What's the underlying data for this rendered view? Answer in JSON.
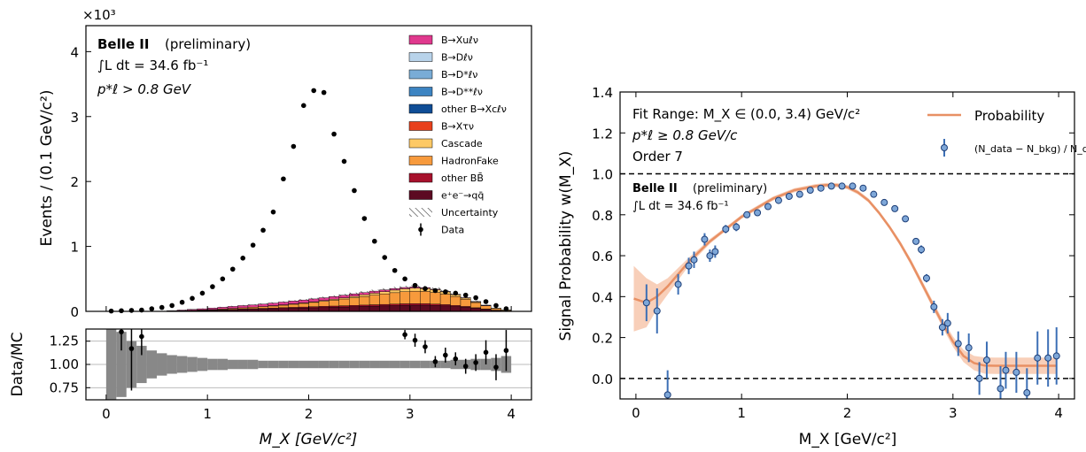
{
  "colors": {
    "B_Xulnu": "#e0398e",
    "B_Dlnu": "#b8d3ea",
    "B_Dstlnu": "#79acd6",
    "B_Dststlnu": "#3c84c2",
    "other_B_Xclnu": "#0f4d96",
    "B_Xtaunu": "#e8401c",
    "Cascade": "#fdc965",
    "HadronFake": "#f79a3c",
    "other_BB": "#a7112c",
    "ee_qq": "#5c0a22",
    "unc": "#888888",
    "fit_line": "#e89064",
    "fit_band": "#f6c3a7",
    "ratio_points": "#7ea7d8",
    "ratio_edge": "#1e3f78"
  },
  "chart_data": [
    {
      "type": "bar",
      "stacked": true,
      "panel": "main",
      "title": "",
      "exponent_label": "×10³",
      "xlim": [
        -0.2,
        4.2
      ],
      "ylim": [
        0,
        4.4
      ],
      "ylabel": "Events / (0.1 GeV/c²)",
      "yticks": [
        "0",
        "1",
        "2",
        "3",
        "4"
      ],
      "annotations": [
        "Belle II",
        "(preliminary)",
        "∫L dt = 34.6 fb⁻¹",
        "p*ℓ > 0.8 GeV"
      ],
      "bins_x": [
        0.05,
        0.15,
        0.25,
        0.35,
        0.45,
        0.55,
        0.65,
        0.75,
        0.85,
        0.95,
        1.05,
        1.15,
        1.25,
        1.35,
        1.45,
        1.55,
        1.65,
        1.75,
        1.85,
        1.95,
        2.05,
        2.15,
        2.25,
        2.35,
        2.45,
        2.55,
        2.65,
        2.75,
        2.85,
        2.95,
        3.05,
        3.15,
        3.25,
        3.35,
        3.45,
        3.55,
        3.65,
        3.75,
        3.85,
        3.95
      ],
      "series": [
        {
          "name": "B→Xuℓν",
          "color_key": "B_Xulnu",
          "values": [
            0,
            0,
            0,
            0,
            0,
            0,
            0.004,
            0.01,
            0.014,
            0.018,
            0.022,
            0.026,
            0.03,
            0.034,
            0.036,
            0.038,
            0.04,
            0.042,
            0.043,
            0.044,
            0.044,
            0.043,
            0.042,
            0.04,
            0.038,
            0.035,
            0.032,
            0.028,
            0.024,
            0.02,
            0.016,
            0.012,
            0.008,
            0.006,
            0.004,
            0.003,
            0.002,
            0.001,
            0,
            0
          ]
        },
        {
          "name": "B→Dℓν",
          "color_key": "B_Dlnu",
          "values": [
            0,
            0,
            0,
            0,
            0,
            0,
            0,
            0,
            0,
            0,
            0,
            0,
            0,
            0,
            0,
            0,
            0,
            0,
            0,
            0,
            0,
            0,
            0,
            0,
            0,
            0,
            0,
            0,
            0,
            0,
            0,
            0,
            0,
            0,
            0,
            0,
            0,
            0,
            0,
            0
          ]
        },
        {
          "name": "B→D*ℓν",
          "color_key": "B_Dstlnu",
          "values": [
            0,
            0,
            0,
            0,
            0,
            0,
            0,
            0,
            0,
            0,
            0,
            0,
            0,
            0,
            0,
            0,
            0,
            0,
            0,
            0,
            0,
            0,
            0,
            0,
            0,
            0,
            0,
            0,
            0,
            0,
            0,
            0,
            0,
            0,
            0,
            0,
            0,
            0,
            0,
            0
          ]
        },
        {
          "name": "B→D**ℓν",
          "color_key": "B_Dststlnu",
          "values": [
            0,
            0,
            0,
            0,
            0,
            0,
            0,
            0,
            0,
            0,
            0,
            0,
            0,
            0,
            0,
            0,
            0,
            0,
            0,
            0,
            0,
            0,
            0,
            0,
            0,
            0,
            0,
            0,
            0,
            0,
            0,
            0,
            0,
            0,
            0,
            0,
            0,
            0,
            0,
            0
          ]
        },
        {
          "name": "other B→Xcℓν",
          "color_key": "other_B_Xclnu",
          "values": [
            0,
            0,
            0,
            0,
            0,
            0,
            0,
            0,
            0,
            0,
            0,
            0,
            0,
            0,
            0,
            0,
            0,
            0,
            0,
            0,
            0,
            0,
            0,
            0,
            0,
            0,
            0,
            0,
            0,
            0,
            0,
            0,
            0,
            0,
            0,
            0,
            0,
            0,
            0,
            0
          ]
        },
        {
          "name": "B→Xτν",
          "color_key": "B_Xtaunu",
          "values": [
            0,
            0,
            0,
            0,
            0,
            0,
            0,
            0,
            0,
            0,
            0,
            0,
            0,
            0,
            0,
            0,
            0,
            0,
            0,
            0,
            0,
            0,
            0,
            0,
            0,
            0,
            0,
            0,
            0,
            0,
            0,
            0,
            0,
            0,
            0,
            0,
            0,
            0,
            0,
            0
          ]
        },
        {
          "name": "Cascade",
          "color_key": "Cascade",
          "values": [
            0,
            0,
            0,
            0,
            0,
            0,
            0,
            0,
            0,
            0,
            0,
            0,
            0,
            0,
            0,
            0,
            0.002,
            0.004,
            0.006,
            0.008,
            0.01,
            0.012,
            0.015,
            0.018,
            0.022,
            0.026,
            0.03,
            0.035,
            0.04,
            0.045,
            0.048,
            0.046,
            0.042,
            0.036,
            0.03,
            0.022,
            0.014,
            0.008,
            0.004,
            0.002
          ]
        },
        {
          "name": "HadronFake",
          "color_key": "HadronFake",
          "values": [
            0,
            0,
            0,
            0,
            0,
            0,
            0,
            0,
            0.002,
            0.004,
            0.006,
            0.01,
            0.014,
            0.018,
            0.022,
            0.028,
            0.034,
            0.04,
            0.048,
            0.056,
            0.066,
            0.078,
            0.09,
            0.104,
            0.118,
            0.132,
            0.148,
            0.162,
            0.176,
            0.186,
            0.192,
            0.19,
            0.18,
            0.162,
            0.138,
            0.11,
            0.08,
            0.05,
            0.026,
            0.012
          ]
        },
        {
          "name": "other BB̄",
          "color_key": "other_BB",
          "values": [
            0,
            0,
            0,
            0,
            0,
            0,
            0.002,
            0.003,
            0.004,
            0.005,
            0.006,
            0.007,
            0.008,
            0.009,
            0.01,
            0.011,
            0.012,
            0.013,
            0.014,
            0.015,
            0.016,
            0.017,
            0.018,
            0.019,
            0.02,
            0.021,
            0.022,
            0.023,
            0.024,
            0.025,
            0.025,
            0.024,
            0.022,
            0.02,
            0.017,
            0.014,
            0.01,
            0.006,
            0.003,
            0.001
          ]
        },
        {
          "name": "e⁺e⁻→qq̄",
          "color_key": "ee_qq",
          "values": [
            0,
            0,
            0,
            0,
            0,
            0,
            0.004,
            0.007,
            0.01,
            0.013,
            0.016,
            0.02,
            0.024,
            0.028,
            0.032,
            0.036,
            0.04,
            0.044,
            0.048,
            0.052,
            0.056,
            0.06,
            0.064,
            0.068,
            0.072,
            0.076,
            0.08,
            0.084,
            0.088,
            0.092,
            0.094,
            0.094,
            0.09,
            0.084,
            0.074,
            0.062,
            0.046,
            0.03,
            0.016,
            0.006
          ]
        }
      ],
      "data_points": {
        "name": "Data",
        "x": [
          0.05,
          0.15,
          0.25,
          0.35,
          0.45,
          0.55,
          0.65,
          0.75,
          0.85,
          0.95,
          1.05,
          1.15,
          1.25,
          1.35,
          1.45,
          1.55,
          1.65,
          1.75,
          1.85,
          1.95,
          2.05,
          2.15,
          2.25,
          2.35,
          2.45,
          2.55,
          2.65,
          2.75,
          2.85,
          2.95,
          3.05,
          3.15,
          3.25,
          3.35,
          3.45,
          3.55,
          3.65,
          3.75,
          3.85,
          3.95
        ],
        "y": [
          0.005,
          0.01,
          0.015,
          0.02,
          0.04,
          0.06,
          0.09,
          0.14,
          0.2,
          0.28,
          0.38,
          0.5,
          0.65,
          0.82,
          1.02,
          1.25,
          1.53,
          2.04,
          2.54,
          3.17,
          3.4,
          3.37,
          2.73,
          2.31,
          1.86,
          1.43,
          1.08,
          0.83,
          0.63,
          0.5,
          0.4,
          0.35,
          0.32,
          0.3,
          0.28,
          0.25,
          0.21,
          0.15,
          0.09,
          0.04
        ]
      },
      "legend_extra": [
        "Uncertainty",
        "Data"
      ],
      "legend_placement": "top-right"
    },
    {
      "type": "scatter",
      "panel": "ratio",
      "ylabel": "Data/MC",
      "xlabel": "M_X [GeV/c²]",
      "xlim": [
        -0.2,
        4.2
      ],
      "ylim": [
        0.62,
        1.38
      ],
      "yticks": [
        "0.75",
        "1.00",
        "1.25"
      ],
      "xticks": [
        "0",
        "1",
        "2",
        "3",
        "4"
      ],
      "grid": true,
      "band_halfwidth": [
        0.5,
        0.35,
        0.25,
        0.2,
        0.15,
        0.12,
        0.1,
        0.09,
        0.08,
        0.07,
        0.06,
        0.06,
        0.05,
        0.05,
        0.05,
        0.04,
        0.04,
        0.04,
        0.04,
        0.04,
        0.04,
        0.04,
        0.04,
        0.04,
        0.04,
        0.04,
        0.04,
        0.04,
        0.04,
        0.04,
        0.04,
        0.04,
        0.04,
        0.04,
        0.05,
        0.05,
        0.06,
        0.06,
        0.07,
        0.09
      ],
      "points": [
        {
          "x": 0.15,
          "y": 1.35,
          "err": 0.2
        },
        {
          "x": 0.25,
          "y": 1.17,
          "err": 0.45
        },
        {
          "x": 0.35,
          "y": 1.3,
          "err": 0.2
        },
        {
          "x": 2.95,
          "y": 1.32,
          "err": 0.05
        },
        {
          "x": 3.05,
          "y": 1.26,
          "err": 0.07
        },
        {
          "x": 3.15,
          "y": 1.19,
          "err": 0.07
        },
        {
          "x": 3.25,
          "y": 1.03,
          "err": 0.06
        },
        {
          "x": 3.35,
          "y": 1.1,
          "err": 0.08
        },
        {
          "x": 3.45,
          "y": 1.06,
          "err": 0.07
        },
        {
          "x": 3.55,
          "y": 0.98,
          "err": 0.08
        },
        {
          "x": 3.65,
          "y": 1.02,
          "err": 0.09
        },
        {
          "x": 3.75,
          "y": 1.13,
          "err": 0.13
        },
        {
          "x": 3.85,
          "y": 0.97,
          "err": 0.14
        },
        {
          "x": 3.95,
          "y": 1.15,
          "err": 0.22
        }
      ]
    },
    {
      "type": "line",
      "panel": "fit",
      "xlabel": "M_X [GeV/c²]",
      "ylabel": "Signal Probability w(M_X)",
      "xlim": [
        -0.15,
        4.15
      ],
      "ylim": [
        -0.1,
        1.4
      ],
      "xticks": [
        "0",
        "1",
        "2",
        "3",
        "4"
      ],
      "yticks": [
        "0.0",
        "0.2",
        "0.4",
        "0.6",
        "0.8",
        "1.0",
        "1.2",
        "1.4"
      ],
      "hlines": [
        0.0,
        1.0
      ],
      "annotations": [
        "Fit Range: M_X ∈ (0.0, 3.4) GeV/c²",
        "p*ℓ ≥ 0.8 GeV/c",
        "Order 7",
        "Belle II",
        "(preliminary)",
        "∫L dt = 34.6 fb⁻¹"
      ],
      "legend": [
        "Probability",
        "(N_data − N_bkg) / N_data"
      ],
      "legend_placement": "top-right",
      "curve": {
        "name": "Probability",
        "x": [
          -0.02,
          0.1,
          0.2,
          0.3,
          0.4,
          0.5,
          0.6,
          0.7,
          0.8,
          0.9,
          1.0,
          1.1,
          1.2,
          1.3,
          1.4,
          1.5,
          1.6,
          1.7,
          1.8,
          1.9,
          2.0,
          2.1,
          2.2,
          2.3,
          2.4,
          2.5,
          2.6,
          2.7,
          2.8,
          2.9,
          3.0,
          3.1,
          3.2,
          3.3,
          3.4,
          3.6,
          3.8,
          3.98
        ],
        "y": [
          0.39,
          0.37,
          0.4,
          0.45,
          0.51,
          0.57,
          0.62,
          0.67,
          0.71,
          0.75,
          0.79,
          0.82,
          0.85,
          0.88,
          0.9,
          0.92,
          0.93,
          0.94,
          0.945,
          0.945,
          0.935,
          0.91,
          0.87,
          0.81,
          0.74,
          0.66,
          0.57,
          0.47,
          0.37,
          0.27,
          0.18,
          0.11,
          0.075,
          0.063,
          0.062,
          0.062,
          0.062,
          0.062
        ],
        "band": [
          0.16,
          0.12,
          0.06,
          0.04,
          0.03,
          0.02,
          0.015,
          0.012,
          0.01,
          0.01,
          0.01,
          0.01,
          0.01,
          0.01,
          0.01,
          0.01,
          0.01,
          0.01,
          0.01,
          0.01,
          0.01,
          0.01,
          0.01,
          0.01,
          0.01,
          0.012,
          0.014,
          0.016,
          0.018,
          0.02,
          0.025,
          0.03,
          0.035,
          0.04,
          0.04,
          0.04,
          0.04,
          0.04
        ]
      },
      "points": [
        {
          "x": 0.1,
          "y": 0.37,
          "err": 0.09
        },
        {
          "x": 0.2,
          "y": 0.33,
          "err": 0.11
        },
        {
          "x": 0.3,
          "y": -0.08,
          "err": 0.12
        },
        {
          "x": 0.4,
          "y": 0.46,
          "err": 0.05
        },
        {
          "x": 0.5,
          "y": 0.55,
          "err": 0.04
        },
        {
          "x": 0.55,
          "y": 0.58,
          "err": 0.04
        },
        {
          "x": 0.65,
          "y": 0.68,
          "err": 0.03
        },
        {
          "x": 0.7,
          "y": 0.6,
          "err": 0.03
        },
        {
          "x": 0.75,
          "y": 0.62,
          "err": 0.03
        },
        {
          "x": 0.85,
          "y": 0.73,
          "err": 0.02
        },
        {
          "x": 0.95,
          "y": 0.74,
          "err": 0.02
        },
        {
          "x": 1.05,
          "y": 0.8,
          "err": 0.015
        },
        {
          "x": 1.15,
          "y": 0.81,
          "err": 0.015
        },
        {
          "x": 1.25,
          "y": 0.84,
          "err": 0.01
        },
        {
          "x": 1.35,
          "y": 0.87,
          "err": 0.01
        },
        {
          "x": 1.45,
          "y": 0.89,
          "err": 0.01
        },
        {
          "x": 1.55,
          "y": 0.9,
          "err": 0.01
        },
        {
          "x": 1.65,
          "y": 0.92,
          "err": 0.01
        },
        {
          "x": 1.75,
          "y": 0.93,
          "err": 0.01
        },
        {
          "x": 1.85,
          "y": 0.94,
          "err": 0.01
        },
        {
          "x": 1.95,
          "y": 0.94,
          "err": 0.01
        },
        {
          "x": 2.05,
          "y": 0.94,
          "err": 0.01
        },
        {
          "x": 2.15,
          "y": 0.93,
          "err": 0.01
        },
        {
          "x": 2.25,
          "y": 0.9,
          "err": 0.01
        },
        {
          "x": 2.35,
          "y": 0.86,
          "err": 0.01
        },
        {
          "x": 2.45,
          "y": 0.83,
          "err": 0.01
        },
        {
          "x": 2.55,
          "y": 0.78,
          "err": 0.015
        },
        {
          "x": 2.65,
          "y": 0.67,
          "err": 0.015
        },
        {
          "x": 2.7,
          "y": 0.63,
          "err": 0.02
        },
        {
          "x": 2.75,
          "y": 0.49,
          "err": 0.02
        },
        {
          "x": 2.82,
          "y": 0.35,
          "err": 0.03
        },
        {
          "x": 2.9,
          "y": 0.25,
          "err": 0.04
        },
        {
          "x": 2.95,
          "y": 0.27,
          "err": 0.05
        },
        {
          "x": 3.05,
          "y": 0.17,
          "err": 0.06
        },
        {
          "x": 3.15,
          "y": 0.15,
          "err": 0.07
        },
        {
          "x": 3.25,
          "y": 0.0,
          "err": 0.08
        },
        {
          "x": 3.32,
          "y": 0.09,
          "err": 0.09
        },
        {
          "x": 3.45,
          "y": -0.05,
          "err": 0.11
        },
        {
          "x": 3.5,
          "y": 0.04,
          "err": 0.09
        },
        {
          "x": 3.6,
          "y": 0.03,
          "err": 0.1
        },
        {
          "x": 3.7,
          "y": -0.07,
          "err": 0.12
        },
        {
          "x": 3.8,
          "y": 0.1,
          "err": 0.13
        },
        {
          "x": 3.9,
          "y": 0.1,
          "err": 0.14
        },
        {
          "x": 3.98,
          "y": 0.11,
          "err": 0.14
        }
      ]
    }
  ]
}
